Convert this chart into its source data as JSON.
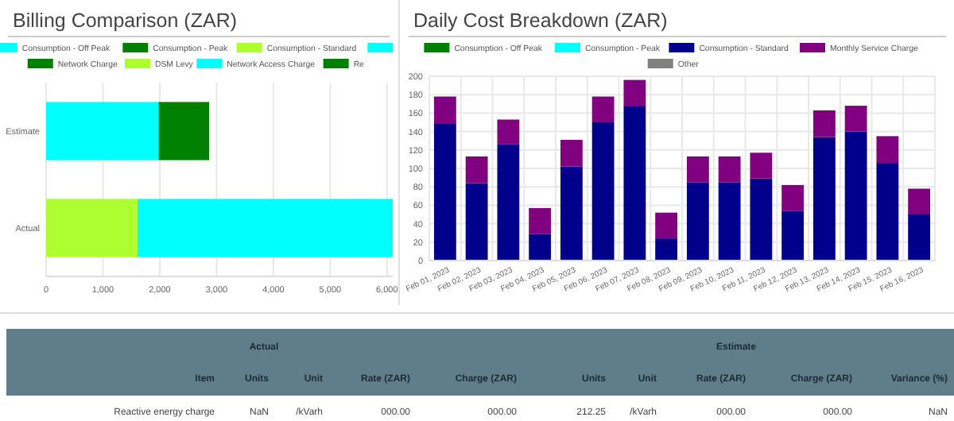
{
  "chart_data": [
    {
      "type": "bar",
      "title": "Billing Comparison (ZAR)",
      "orientation": "horizontal",
      "stacked": true,
      "categories": [
        "Estimate",
        "Actual"
      ],
      "legend": "top",
      "grid": "x",
      "xlim": [
        0,
        6100
      ],
      "xticks": [
        0,
        {
          "value": 1000,
          "label": "1,000"
        },
        {
          "value": 2000,
          "label": "2,000"
        },
        {
          "value": 3000,
          "label": "3,000"
        },
        {
          "value": 4000,
          "label": "4,000"
        },
        {
          "value": 5000,
          "label": "5,000"
        },
        {
          "value": 6000,
          "label": "6,000"
        }
      ],
      "series": [
        {
          "name": "Consumption - Off Peak",
          "color": "#00ffff",
          "values": [
            1980,
            null
          ]
        },
        {
          "name": "Consumption - Peak",
          "color": "#008000",
          "values": [
            890,
            null
          ]
        },
        {
          "name": "Consumption - Standard",
          "color": "#adff2f",
          "values": [
            null,
            1610
          ]
        },
        {
          "color": "#00ffff",
          "values": [
            null,
            null
          ]
        },
        {
          "name": "Network Charge",
          "color": "#008000",
          "values": [
            null,
            null
          ]
        },
        {
          "name": "DSM Levy",
          "color": "#adff2f",
          "values": [
            null,
            null
          ]
        },
        {
          "name": "Network Access Charge",
          "color": "#00ffff",
          "values": [
            null,
            4490
          ]
        },
        {
          "name": "Re",
          "color": "#008000",
          "values": [
            null,
            null
          ]
        }
      ]
    },
    {
      "type": "bar",
      "title": "Daily Cost Breakdown (ZAR)",
      "stacked": true,
      "legend": "top",
      "grid": true,
      "categories": [
        "Feb 01, 2023",
        "Feb 02, 2023",
        "Feb 03, 2023",
        "Feb 04, 2023",
        "Feb 05, 2023",
        "Feb 06, 2023",
        "Feb 07, 2023",
        "Feb 08, 2023",
        "Feb 09, 2023",
        "Feb 10, 2023",
        "Feb 11, 2023",
        "Feb 12, 2023",
        "Feb 13, 2023",
        "Feb 14, 2023",
        "Feb 15, 2023",
        "Feb 16, 2023"
      ],
      "ylim": [
        0,
        200
      ],
      "yticks": [
        0,
        20,
        40,
        60,
        80,
        100,
        120,
        140,
        160,
        180,
        200
      ],
      "series": [
        {
          "name": "Consumption - Off Peak",
          "color": "#008000",
          "values": [
            null,
            null,
            null,
            null,
            null,
            null,
            null,
            null,
            null,
            null,
            null,
            null,
            null,
            null,
            null,
            null
          ]
        },
        {
          "name": "Consumption - Peak",
          "color": "#00ffff",
          "values": [
            null,
            null,
            null,
            null,
            null,
            null,
            null,
            null,
            null,
            null,
            null,
            null,
            null,
            null,
            null,
            null
          ]
        },
        {
          "name": "Consumption - Standard",
          "color": "#00008b",
          "values": [
            149,
            84,
            126,
            29,
            102,
            150,
            168,
            24,
            85,
            85,
            89,
            54,
            134,
            140,
            106,
            50
          ]
        },
        {
          "name": "Monthly Service Charge",
          "color": "#800080",
          "values": [
            29,
            29,
            27,
            28,
            29,
            28,
            28,
            28,
            28,
            28,
            28,
            28,
            29,
            28,
            29,
            28
          ]
        },
        {
          "name": "Other",
          "color": "#808080",
          "values": [
            null,
            null,
            null,
            null,
            null,
            null,
            null,
            null,
            null,
            null,
            null,
            null,
            null,
            null,
            null,
            null
          ]
        }
      ]
    },
    {
      "type": "other",
      "annotations": [
        "Actual",
        "Estimate",
        "Item",
        "Units",
        "Unit",
        "Rate (ZAR)",
        "Charge (ZAR)",
        "Units",
        "Unit",
        "Rate (ZAR)",
        "Charge (ZAR)",
        "Variance (%)",
        "Reactive energy charge",
        "NaN",
        "/kVarh",
        "000.00",
        "000.00",
        "212.25",
        "/kVarh",
        "000.00",
        "000.00",
        "NaN"
      ]
    }
  ]
}
